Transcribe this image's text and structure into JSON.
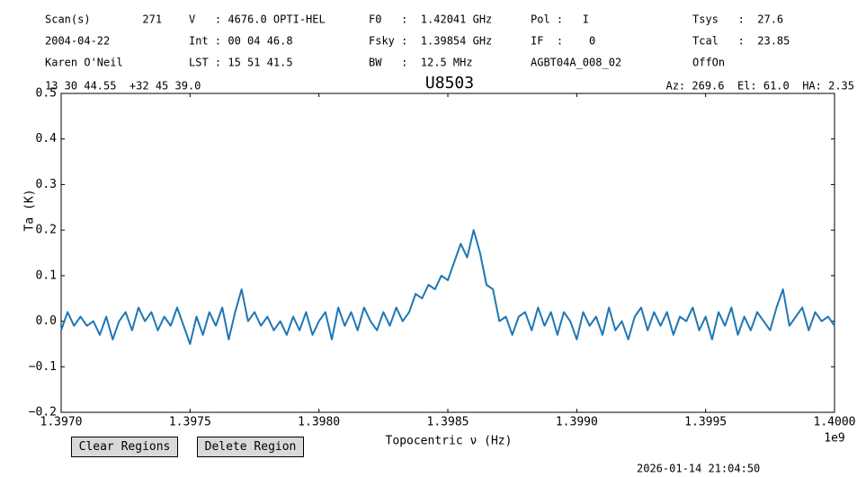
{
  "header": [
    [
      "Scan(s)        271",
      "V   : 4676.0 OPTI-HEL",
      "F0   :  1.42041 GHz",
      "Pol :   I",
      "Tsys   :  27.6"
    ],
    [
      "2004-04-22",
      "Int : 00 04 46.8",
      "Fsky :  1.39854 GHz",
      "IF  :    0",
      "Tcal   :  23.85"
    ],
    [
      "Karen O'Neil",
      "LST : 15 51 41.5",
      "BW   :  12.5 MHz",
      "AGBT04A_008_02",
      "OffOn"
    ]
  ],
  "coordinates": "13 30 44.55  +32 45 39.0",
  "pointing": "Az: 269.6  El: 61.0  HA: 2.35",
  "buttons": [
    "Clear Regions",
    "Delete Region"
  ],
  "timestamp": "2026-01-14 21:04:50",
  "chart_data": {
    "type": "line",
    "title": "U8503",
    "x_label": "Topocentric ν (Hz)",
    "x_offset": "1e9",
    "y_label": "Ta (K)",
    "color": "#1f77b4",
    "xlim": [
      1.397,
      1.4
    ],
    "ylim": [
      -0.2,
      0.5
    ],
    "xticks": [
      {
        "value": 1.397,
        "label": "1.3970"
      },
      {
        "value": 1.3975,
        "label": "1.3975"
      },
      {
        "value": 1.398,
        "label": "1.3980"
      },
      {
        "value": 1.3985,
        "label": "1.3985"
      },
      {
        "value": 1.399,
        "label": "1.3990"
      },
      {
        "value": 1.3995,
        "label": "1.3995"
      },
      {
        "value": 1.4,
        "label": "1.4000"
      }
    ],
    "yticks": [
      {
        "value": -0.2,
        "label": "−0.2"
      },
      {
        "value": -0.1,
        "label": "−0.1"
      },
      {
        "value": 0,
        "label": "0.0"
      },
      0.1,
      0.2,
      0.3,
      0.4,
      0.5
    ],
    "x": [
      1.397,
      1.397025,
      1.39705,
      1.397075,
      1.3971,
      1.397125,
      1.39715,
      1.397175,
      1.3972,
      1.397225,
      1.39725,
      1.397275,
      1.3973,
      1.397325,
      1.39735,
      1.397375,
      1.3974,
      1.397425,
      1.39745,
      1.397475,
      1.3975,
      1.397525,
      1.39755,
      1.397575,
      1.3976,
      1.397625,
      1.39765,
      1.397675,
      1.3977,
      1.397725,
      1.39775,
      1.397775,
      1.3978,
      1.397825,
      1.39785,
      1.397875,
      1.3979,
      1.397925,
      1.39795,
      1.397975,
      1.398,
      1.398025,
      1.39805,
      1.398075,
      1.3981,
      1.398125,
      1.39815,
      1.398175,
      1.3982,
      1.398225,
      1.39825,
      1.398275,
      1.3983,
      1.398325,
      1.39835,
      1.398375,
      1.3984,
      1.398425,
      1.39845,
      1.398475,
      1.3985,
      1.398525,
      1.39855,
      1.398575,
      1.3986,
      1.398625,
      1.39865,
      1.398675,
      1.3987,
      1.398725,
      1.39875,
      1.398775,
      1.3988,
      1.398825,
      1.39885,
      1.398875,
      1.3989,
      1.398925,
      1.39895,
      1.398975,
      1.399,
      1.399025,
      1.39905,
      1.399075,
      1.3991,
      1.399125,
      1.39915,
      1.399175,
      1.3992,
      1.399225,
      1.39925,
      1.399275,
      1.3993,
      1.399325,
      1.39935,
      1.399375,
      1.3994,
      1.399425,
      1.39945,
      1.399475,
      1.3995,
      1.399525,
      1.39955,
      1.399575,
      1.3996,
      1.399625,
      1.39965,
      1.399675,
      1.3997,
      1.399725,
      1.39975,
      1.399775,
      1.3998,
      1.399825,
      1.39985,
      1.399875,
      1.3999,
      1.399925,
      1.39995,
      1.399975,
      1.4
    ],
    "values": [
      -0.02,
      0.02,
      -0.01,
      0.01,
      -0.01,
      0.0,
      -0.03,
      0.01,
      -0.04,
      0.0,
      0.02,
      -0.02,
      0.03,
      0.0,
      0.02,
      -0.02,
      0.01,
      -0.01,
      0.03,
      -0.01,
      -0.05,
      0.01,
      -0.03,
      0.02,
      -0.01,
      0.03,
      -0.04,
      0.02,
      0.07,
      0.0,
      0.02,
      -0.01,
      0.01,
      -0.02,
      0.0,
      -0.03,
      0.01,
      -0.02,
      0.02,
      -0.03,
      0.0,
      0.02,
      -0.04,
      0.03,
      -0.01,
      0.02,
      -0.02,
      0.03,
      0.0,
      -0.02,
      0.02,
      -0.01,
      0.03,
      0.0,
      0.02,
      0.06,
      0.05,
      0.08,
      0.07,
      0.1,
      0.09,
      0.13,
      0.17,
      0.14,
      0.2,
      0.15,
      0.08,
      0.07,
      0.0,
      0.01,
      -0.03,
      0.01,
      0.02,
      -0.02,
      0.03,
      -0.01,
      0.02,
      -0.03,
      0.02,
      0.0,
      -0.04,
      0.02,
      -0.01,
      0.01,
      -0.03,
      0.03,
      -0.02,
      0.0,
      -0.04,
      0.01,
      0.03,
      -0.02,
      0.02,
      -0.01,
      0.02,
      -0.03,
      0.01,
      0.0,
      0.03,
      -0.02,
      0.01,
      -0.04,
      0.02,
      -0.01,
      0.03,
      -0.03,
      0.01,
      -0.02,
      0.02,
      0.0,
      -0.02,
      0.03,
      0.07,
      -0.01,
      0.01,
      0.03,
      -0.02,
      0.02,
      0.0,
      0.01,
      -0.01
    ]
  }
}
